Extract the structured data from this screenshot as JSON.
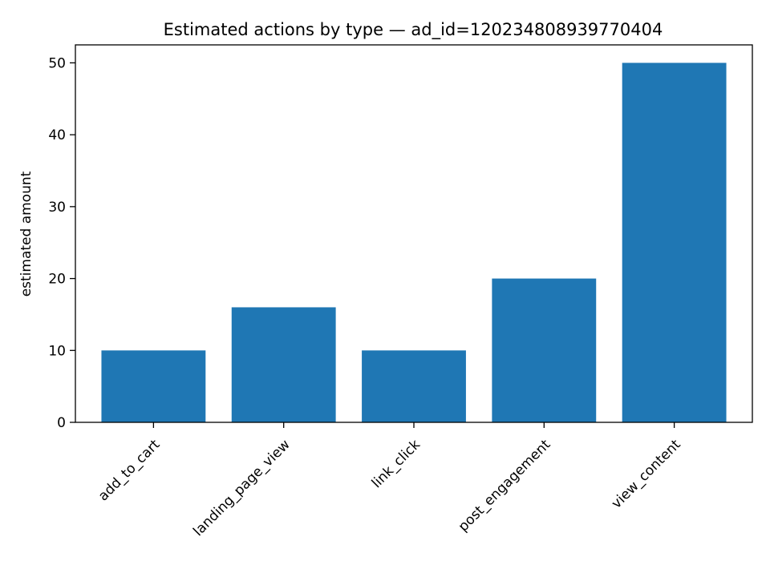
{
  "chart_data": {
    "type": "bar",
    "title": "Estimated actions by type — ad_id=120234808939770404",
    "xlabel": "",
    "ylabel": "estimated amount",
    "categories": [
      "add_to_cart",
      "landing_page_view",
      "link_click",
      "post_engagement",
      "view_content"
    ],
    "values": [
      10,
      16,
      10,
      20,
      50
    ],
    "ylim": [
      0,
      52.5
    ],
    "yticks": [
      0,
      10,
      20,
      30,
      40,
      50
    ],
    "grid": false,
    "legend": "none",
    "bar_color": "#1f77b4"
  }
}
